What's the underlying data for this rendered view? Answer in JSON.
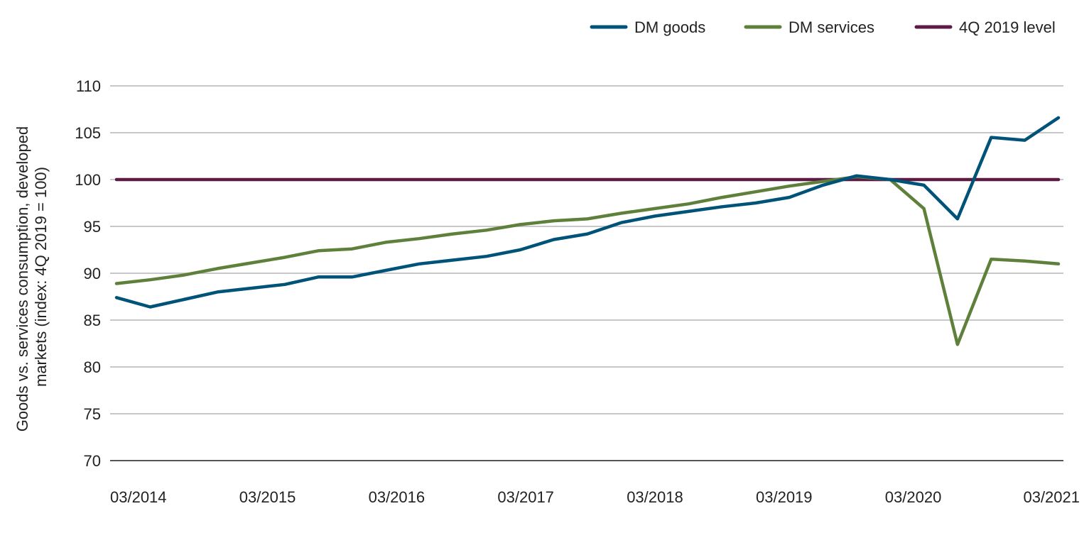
{
  "chart_data": {
    "type": "line",
    "title": "",
    "ylabel": "Goods vs. services consumption, developed markets (index: 4Q 2019 = 100)",
    "ylabel_lines": [
      "Goods vs. services consumption, developed",
      "markets (index: 4Q 2019 = 100)"
    ],
    "xlabel": "",
    "ylim": [
      70,
      110
    ],
    "yticks": [
      70,
      75,
      80,
      85,
      90,
      95,
      100,
      105,
      110
    ],
    "xtick_labels": [
      "03/2014",
      "03/2015",
      "03/2016",
      "03/2017",
      "03/2018",
      "03/2019",
      "03/2020",
      "03/2021"
    ],
    "grid": "horizontal",
    "legend_position": "top-right",
    "x": [
      "03/2014",
      "06/2014",
      "09/2014",
      "12/2014",
      "03/2015",
      "06/2015",
      "09/2015",
      "12/2015",
      "03/2016",
      "06/2016",
      "09/2016",
      "12/2016",
      "03/2017",
      "06/2017",
      "09/2017",
      "12/2017",
      "03/2018",
      "06/2018",
      "09/2018",
      "12/2018",
      "03/2019",
      "06/2019",
      "09/2019",
      "12/2019",
      "03/2020",
      "06/2020",
      "09/2020",
      "12/2020",
      "03/2021"
    ],
    "series": [
      {
        "name": "DM goods",
        "color": "#005378",
        "values": [
          87.4,
          86.4,
          87.2,
          88.0,
          88.4,
          88.8,
          89.6,
          89.6,
          90.3,
          91.0,
          91.4,
          91.8,
          92.5,
          93.6,
          94.2,
          95.4,
          96.1,
          96.6,
          97.1,
          97.5,
          98.1,
          99.4,
          100.4,
          100.0,
          99.4,
          95.8,
          104.5,
          104.2,
          106.6
        ]
      },
      {
        "name": "DM services",
        "color": "#5f803a",
        "values": [
          88.9,
          89.3,
          89.8,
          90.5,
          91.1,
          91.7,
          92.4,
          92.6,
          93.3,
          93.7,
          94.2,
          94.6,
          95.2,
          95.6,
          95.8,
          96.4,
          96.9,
          97.4,
          98.1,
          98.7,
          99.3,
          99.8,
          100.3,
          100.0,
          96.9,
          82.4,
          91.5,
          91.3,
          91.0
        ]
      },
      {
        "name": "4Q 2019 level",
        "color": "#5c1a45",
        "values": [
          100,
          100,
          100,
          100,
          100,
          100,
          100,
          100,
          100,
          100,
          100,
          100,
          100,
          100,
          100,
          100,
          100,
          100,
          100,
          100,
          100,
          100,
          100,
          100,
          100,
          100,
          100,
          100,
          100
        ]
      }
    ]
  }
}
